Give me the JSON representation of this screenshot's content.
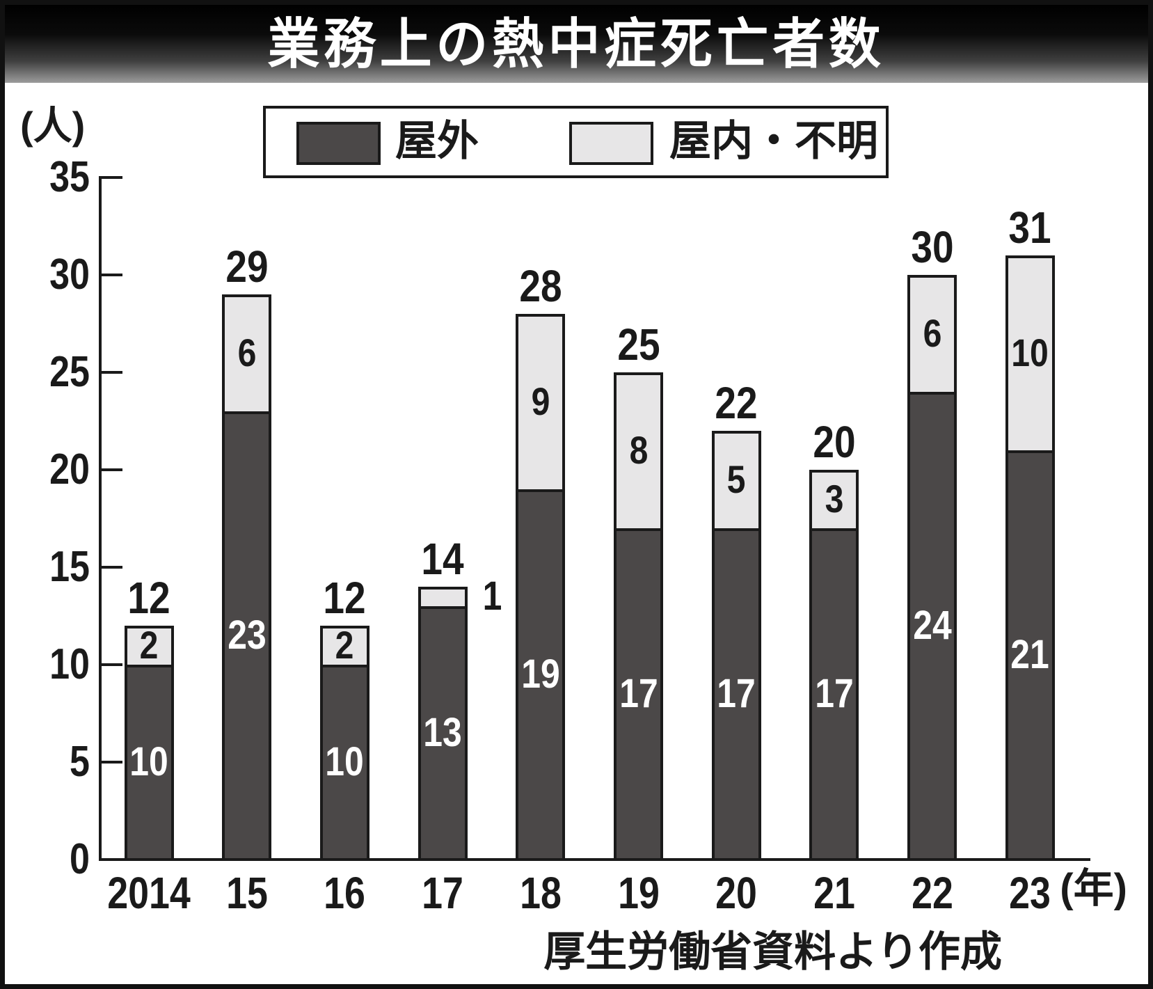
{
  "title": "業務上の熱中症死亡者数",
  "y_axis_unit": "(人)",
  "x_axis_unit": "(年)",
  "source": "厚生労働省資料より作成",
  "legend": [
    {
      "label": "屋外",
      "color": "#4b4848"
    },
    {
      "label": "屋内・不明",
      "color": "#e7e6e7"
    }
  ],
  "colors": {
    "bar_outline": "#1a1a1a",
    "outdoor_fill": "#4b4848",
    "indoor_fill": "#e7e6e7",
    "title_text": "#ffffff"
  },
  "chart_data": {
    "type": "bar",
    "stacked": true,
    "title": "業務上の熱中症死亡者数",
    "categories": [
      "2014",
      "15",
      "16",
      "17",
      "18",
      "19",
      "20",
      "21",
      "22",
      "23"
    ],
    "series": [
      {
        "name": "屋外",
        "values": [
          10,
          23,
          10,
          13,
          19,
          17,
          17,
          17,
          24,
          21
        ]
      },
      {
        "name": "屋内・不明",
        "values": [
          2,
          6,
          2,
          1,
          9,
          8,
          5,
          3,
          6,
          10
        ]
      }
    ],
    "totals": [
      12,
      29,
      12,
      14,
      28,
      25,
      22,
      20,
      30,
      31
    ],
    "xlabel": "年",
    "ylabel": "人",
    "ylim": [
      0,
      35
    ],
    "yticks": [
      0,
      5,
      10,
      15,
      20,
      25,
      30,
      35
    ],
    "grid": false,
    "legend_position": "top"
  }
}
